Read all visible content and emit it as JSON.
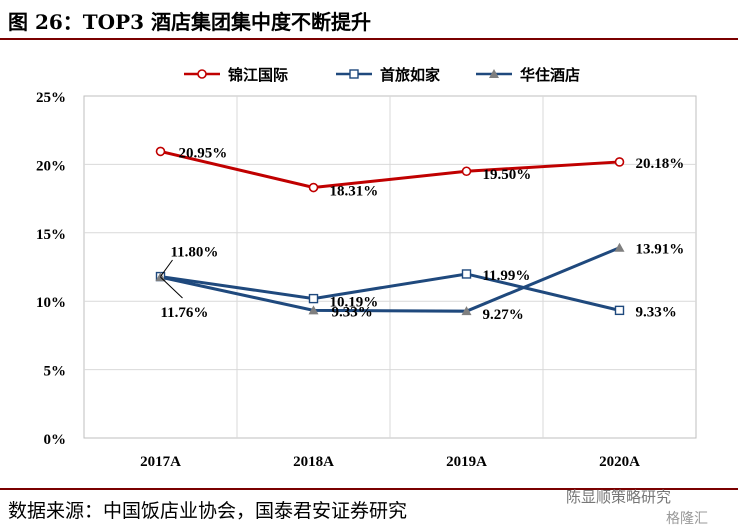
{
  "header": {
    "title": "图 26：TOP3 酒店集团集中度不断提升"
  },
  "footer": {
    "source": "数据来源：中国饭店业协会，国泰君安证券研究",
    "watermark": "陈显顺策略研究",
    "watermark2": "格隆汇"
  },
  "chart_data": {
    "type": "line",
    "categories": [
      "2017A",
      "2018A",
      "2019A",
      "2020A"
    ],
    "ylim": [
      0,
      25
    ],
    "yticks": [
      "0%",
      "5%",
      "10%",
      "15%",
      "20%",
      "25%"
    ],
    "grid": true,
    "legend_position": "top",
    "series": [
      {
        "name": "锦江国际",
        "color": "#c00000",
        "marker": "circle",
        "values": [
          20.95,
          18.31,
          19.5,
          20.18
        ],
        "labels": [
          "20.95%",
          "18.31%",
          "19.50%",
          "20.18%"
        ]
      },
      {
        "name": "首旅如家",
        "color": "#1f497d",
        "marker": "square",
        "values": [
          11.8,
          10.19,
          11.99,
          9.33
        ],
        "labels": [
          "11.80%",
          "10.19%",
          "11.99%",
          "9.33%"
        ]
      },
      {
        "name": "华住酒店",
        "color": "#1f497d",
        "marker": "triangle",
        "values": [
          11.76,
          9.33,
          9.27,
          13.91
        ],
        "labels": [
          "11.76%",
          "9.33%",
          "9.27%",
          "13.91%"
        ]
      }
    ]
  }
}
